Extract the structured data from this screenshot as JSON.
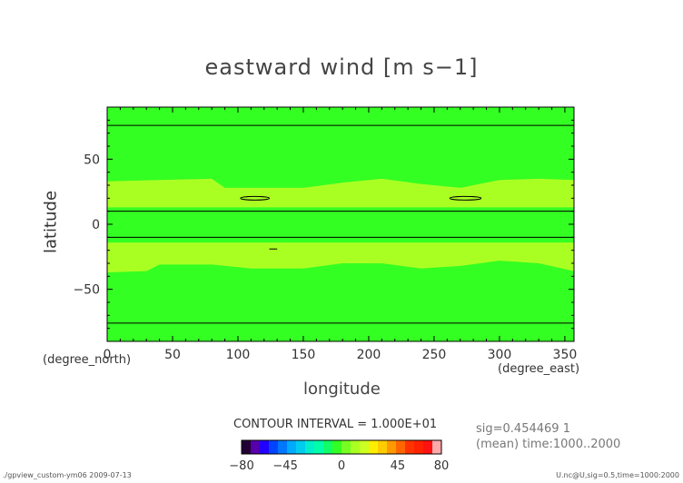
{
  "colors": {
    "outer_band": "#33ff22",
    "inner_band": "#aaff22",
    "contour": "#000000"
  },
  "chart_data": {
    "type": "heatmap",
    "title": "eastward wind [m s−1]",
    "xlabel": "longitude",
    "ylabel": "latitude",
    "x_unit": "(degree_east)",
    "y_unit": "(degree_north)",
    "xlim": [
      0,
      357
    ],
    "ylim": [
      -90,
      90
    ],
    "x_ticks": [
      0,
      50,
      100,
      150,
      200,
      250,
      300,
      350
    ],
    "y_ticks": [
      50,
      0,
      -50
    ],
    "y_tick_labels": [
      "50",
      "0",
      "−50"
    ],
    "contour_interval_text": "CONTOUR INTERVAL = 1.000E+01",
    "contour_lines_latitude": [
      76,
      10,
      -10,
      -76
    ],
    "band_10_20_north": {
      "lon": [
        0,
        40,
        80,
        90,
        130,
        150,
        180,
        210,
        240,
        270,
        300,
        330,
        357
      ],
      "lat_top": [
        33,
        34,
        35,
        28,
        28,
        28,
        32,
        35,
        31,
        28,
        34,
        35,
        34
      ],
      "lat_bottom": [
        13,
        13,
        13,
        13,
        13,
        13,
        13,
        13,
        13,
        13,
        13,
        13,
        13
      ]
    },
    "band_10_20_south": {
      "lon": [
        0,
        30,
        40,
        80,
        110,
        150,
        180,
        210,
        240,
        270,
        300,
        330,
        357
      ],
      "lat_top": [
        -14,
        -14,
        -14,
        -14,
        -14,
        -14,
        -14,
        -14,
        -14,
        -14,
        -14,
        -14,
        -14
      ],
      "lat_bottom": [
        -37,
        -36,
        -31,
        -31,
        -34,
        -34,
        -30,
        -30,
        -34,
        -32,
        -28,
        -30,
        -36
      ]
    },
    "closed_contours": [
      {
        "lon_center": 113,
        "lat_center": 20,
        "lon_halfwidth": 11,
        "lat_halfheight": 1.3
      },
      {
        "lon_center": 274,
        "lat_center": 20,
        "lon_halfwidth": 12,
        "lat_halfheight": 1.3
      }
    ],
    "short_contour": {
      "lon": [
        124,
        130
      ],
      "lat": -19
    },
    "colorbar": {
      "colors": [
        "#220033",
        "#5500aa",
        "#2200ff",
        "#0044ff",
        "#0077ff",
        "#00aaff",
        "#00ccee",
        "#00eecc",
        "#00ffaa",
        "#11ff66",
        "#33ff22",
        "#77ff22",
        "#aaff22",
        "#ccff22",
        "#ffee00",
        "#ffcc00",
        "#ff9900",
        "#ff6600",
        "#ff3300",
        "#ff2200",
        "#ff1111",
        "#ffaaaa"
      ],
      "tick_values": [
        -80,
        -45,
        0,
        45,
        80
      ],
      "tick_labels": [
        "−80",
        "−45",
        "0",
        "45",
        "80"
      ]
    },
    "grid": false
  },
  "annotations": {
    "sig": "sig=0.454469 1",
    "mean": "(mean) time:1000..2000"
  },
  "footer": {
    "left": "./gpview_custom-ym06  2009-07-13",
    "right": "U.nc@U,sig=0.5,time=1000:2000"
  }
}
